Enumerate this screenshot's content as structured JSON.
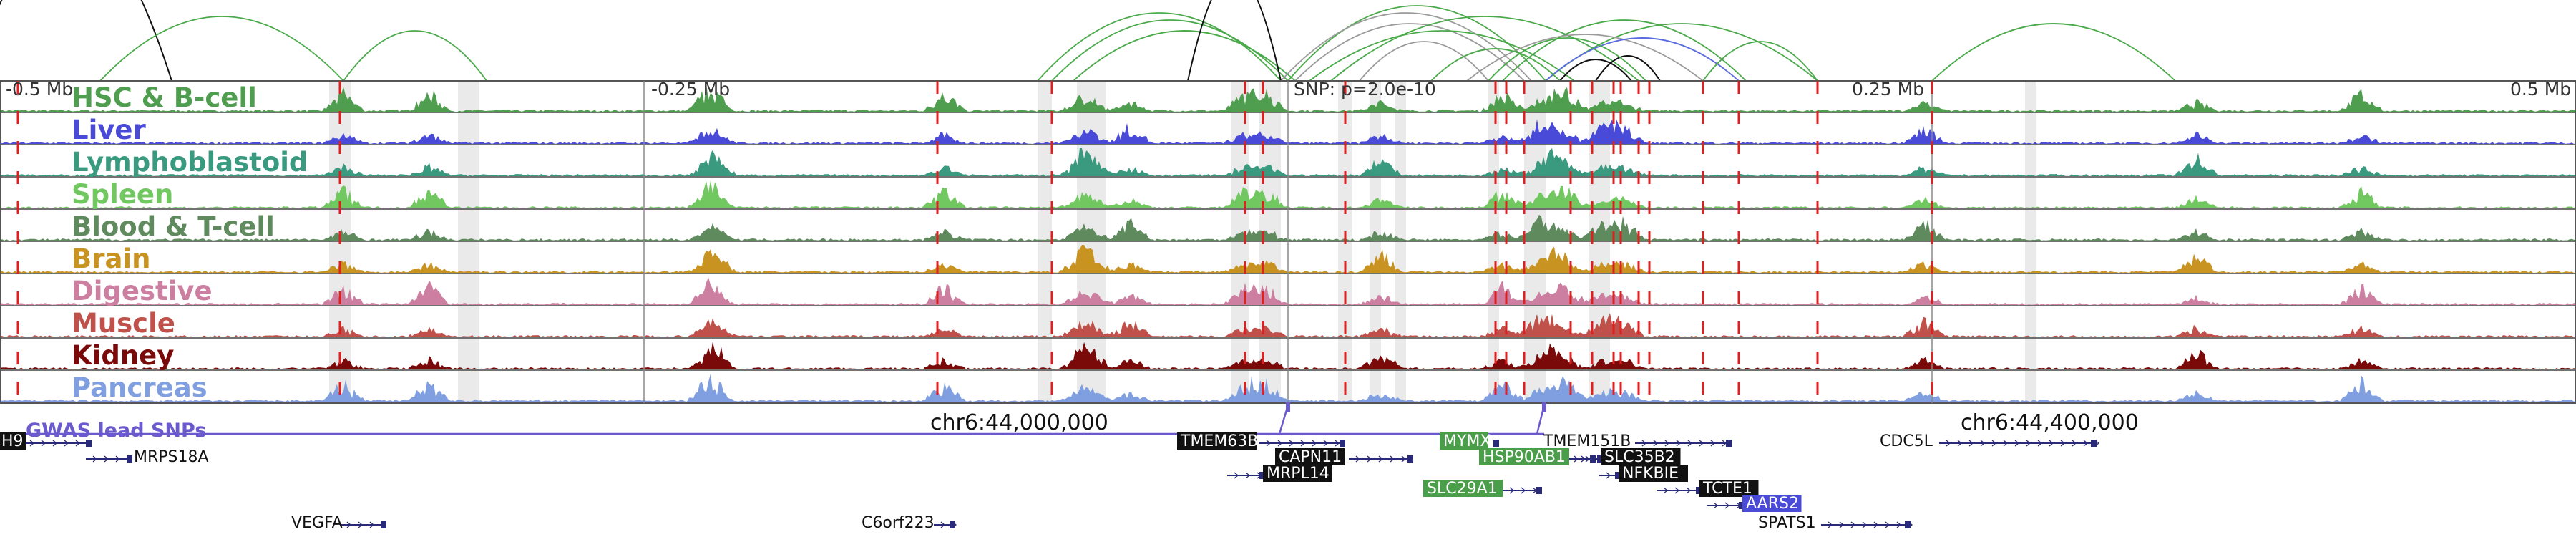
{
  "axis": {
    "left_label": "-0.5 Mb",
    "mid_left_label": "-0.25 Mb",
    "snp_label": "SNP: p=2.0e-10",
    "mid_right_label": "0.25 Mb",
    "right_label": "0.5 Mb",
    "coord_left": "chr6:44,000,000",
    "coord_right": "chr6:44,400,000"
  },
  "tracks": [
    {
      "label": "HSC & B-cell",
      "color": "#4f9e4f"
    },
    {
      "label": "Liver",
      "color": "#4a4ad8"
    },
    {
      "label": "Lymphoblastoid",
      "color": "#3a9a80"
    },
    {
      "label": "Spleen",
      "color": "#72c860"
    },
    {
      "label": "Blood & T-cell",
      "color": "#5e8a5e"
    },
    {
      "label": "Brain",
      "color": "#c89320"
    },
    {
      "label": "Digestive",
      "color": "#cc7fa0"
    },
    {
      "label": "Muscle",
      "color": "#c0504a"
    },
    {
      "label": "Kidney",
      "color": "#7a0a0a"
    },
    {
      "label": "Pancreas",
      "color": "#7f9fe0"
    }
  ],
  "gwas_label": "GWAS lead SNPs",
  "genes": [
    {
      "name": "H9",
      "style": "black"
    },
    {
      "name": "MRPS18A",
      "style": "plain"
    },
    {
      "name": "VEGFA",
      "style": "plain"
    },
    {
      "name": "C6orf223",
      "style": "plain"
    },
    {
      "name": "TMEM63B",
      "style": "black"
    },
    {
      "name": "CAPN11",
      "style": "black"
    },
    {
      "name": "MRPL14",
      "style": "black"
    },
    {
      "name": "MYMX",
      "style": "green"
    },
    {
      "name": "HSP90AB1",
      "style": "green"
    },
    {
      "name": "SLC29A1",
      "style": "green"
    },
    {
      "name": "TMEM151B",
      "style": "plain"
    },
    {
      "name": "SLC35B2",
      "style": "black"
    },
    {
      "name": "NFKBIE",
      "style": "black"
    },
    {
      "name": "TCTE1",
      "style": "black"
    },
    {
      "name": "AARS2",
      "style": "blue"
    },
    {
      "name": "SPATS1",
      "style": "plain"
    },
    {
      "name": "CDC5L",
      "style": "plain"
    }
  ],
  "colors": {
    "gwas": "#6a5acd",
    "gene_line": "#2a2a7a",
    "red_marker": "#dd2020",
    "grid_line": "#888888",
    "arc_green": "#4aaa4a"
  }
}
